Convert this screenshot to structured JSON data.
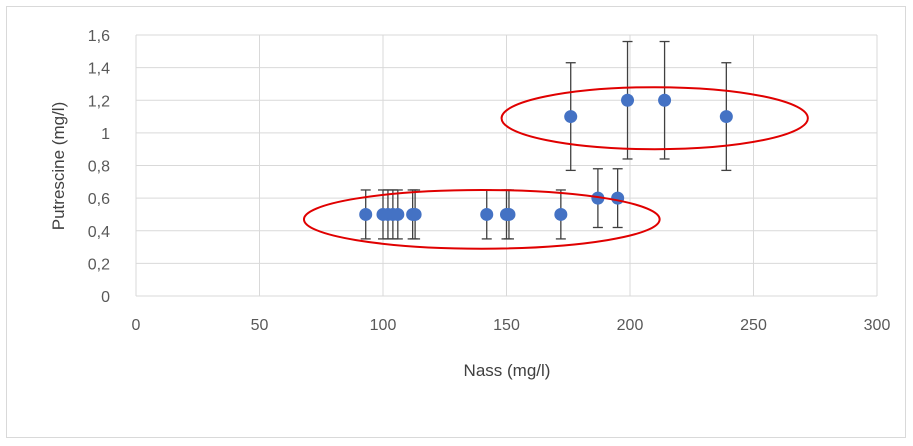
{
  "chart_data": {
    "type": "scatter",
    "title": "",
    "xlabel": "Nass (mg/l)",
    "ylabel": "Putrescine (mg/l)",
    "xlim": [
      0,
      300
    ],
    "ylim": [
      0,
      1.6
    ],
    "x_ticks": [
      0,
      50,
      100,
      150,
      200,
      250,
      300
    ],
    "x_tick_labels": [
      "0",
      "50",
      "100",
      "150",
      "200",
      "250",
      "300"
    ],
    "y_ticks": [
      0,
      0.2,
      0.4,
      0.6,
      0.8,
      1.0,
      1.2,
      1.4,
      1.6
    ],
    "y_tick_labels": [
      "0",
      "0,2",
      "0,4",
      "0,6",
      "0,8",
      "1",
      "1,2",
      "1,4",
      "1,6"
    ],
    "grid": true,
    "legend": "none",
    "marker_color": "#4472c4",
    "errorbar_color": "#404040",
    "highlight_color": "#e00000",
    "points": [
      {
        "x": 93,
        "y": 0.5,
        "err": 0.15
      },
      {
        "x": 100,
        "y": 0.5,
        "err": 0.15
      },
      {
        "x": 102,
        "y": 0.5,
        "err": 0.15
      },
      {
        "x": 104,
        "y": 0.5,
        "err": 0.15
      },
      {
        "x": 106,
        "y": 0.5,
        "err": 0.15
      },
      {
        "x": 112,
        "y": 0.5,
        "err": 0.15
      },
      {
        "x": 113,
        "y": 0.5,
        "err": 0.15
      },
      {
        "x": 142,
        "y": 0.5,
        "err": 0.15
      },
      {
        "x": 150,
        "y": 0.5,
        "err": 0.15
      },
      {
        "x": 151,
        "y": 0.5,
        "err": 0.15
      },
      {
        "x": 172,
        "y": 0.5,
        "err": 0.15
      },
      {
        "x": 187,
        "y": 0.6,
        "err": 0.18
      },
      {
        "x": 195,
        "y": 0.6,
        "err": 0.18
      },
      {
        "x": 176,
        "y": 1.1,
        "err": 0.33
      },
      {
        "x": 199,
        "y": 1.2,
        "err": 0.36
      },
      {
        "x": 214,
        "y": 1.2,
        "err": 0.36
      },
      {
        "x": 239,
        "y": 1.1,
        "err": 0.33
      }
    ],
    "annotations": [
      {
        "shape": "ellipse",
        "cx": 140,
        "cy": 0.47,
        "rx": 72,
        "ry": 0.18
      },
      {
        "shape": "ellipse",
        "cx": 210,
        "cy": 1.09,
        "rx": 62,
        "ry": 0.19
      }
    ]
  }
}
